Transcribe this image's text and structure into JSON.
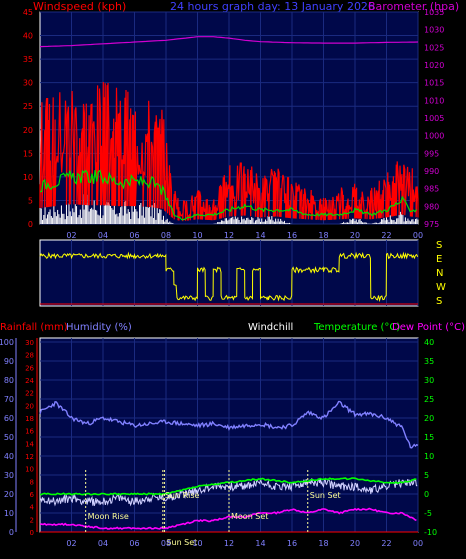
{
  "chart_data": [
    {
      "type": "line",
      "title": "24 hours graph day: 13 January 2026",
      "ylabel_left": "Windspeed (kph)",
      "ylabel_right": "Barometer (hpa)",
      "ylim_left": [
        0,
        45
      ],
      "ylim_right": [
        975,
        1035
      ],
      "left_ticks": [
        "0",
        "5",
        "10",
        "15",
        "20",
        "25",
        "30",
        "35",
        "40",
        "45"
      ],
      "right_ticks": [
        "975",
        "980",
        "985",
        "990",
        "995",
        "1000",
        "1005",
        "1010",
        "1015",
        "1020",
        "1025",
        "1030",
        "1035"
      ],
      "x_ticks": [
        "02",
        "04",
        "06",
        "08",
        "10",
        "12",
        "14",
        "16",
        "18",
        "20",
        "22",
        "00"
      ],
      "series": [
        {
          "name": "Barometer (hpa)",
          "color": "#d000d0",
          "x": [
            0,
            2,
            4,
            6,
            8,
            9,
            10,
            11,
            12,
            13,
            14,
            16,
            18,
            20,
            22,
            24
          ],
          "values": [
            1025.2,
            1025.5,
            1026,
            1026.5,
            1027,
            1027.5,
            1028,
            1028,
            1027.6,
            1027,
            1026.6,
            1026.3,
            1026.2,
            1026.2,
            1026.4,
            1026.5
          ]
        },
        {
          "name": "Wind gust (kph)",
          "color": "#ff0000",
          "x": [
            0,
            1,
            2,
            3,
            4,
            5,
            6,
            7,
            7.8,
            8.5,
            9,
            10,
            11,
            12,
            13,
            14,
            15,
            16,
            17,
            18,
            19,
            20,
            21,
            22,
            23,
            23.5,
            24
          ],
          "values": [
            17,
            19,
            21,
            20,
            20,
            19,
            19,
            18,
            16,
            5,
            3,
            5,
            4,
            8,
            9,
            7,
            8,
            6,
            5,
            4,
            5,
            6,
            5,
            7,
            10,
            8,
            7
          ]
        },
        {
          "name": "Wind average (kph)",
          "color": "#00dd00",
          "x": [
            0,
            1,
            2,
            3,
            4,
            5,
            6,
            7,
            7.8,
            8.5,
            9,
            10,
            11,
            12,
            13,
            14,
            15,
            16,
            17,
            18,
            19,
            20,
            21,
            22,
            23,
            23.5,
            24
          ],
          "values": [
            8,
            9,
            10,
            10,
            10,
            9,
            9,
            9,
            7,
            2,
            1,
            2,
            2,
            3,
            4,
            3,
            3,
            3,
            2,
            2,
            2,
            3,
            2,
            3,
            5,
            3,
            3
          ]
        },
        {
          "name": "Wind lull (kph)",
          "color": "#ffffff",
          "x": [
            0,
            1,
            2,
            3,
            4,
            5,
            6,
            7,
            7.8,
            8.5,
            9,
            10,
            11,
            12,
            13,
            14,
            15,
            16,
            17,
            18,
            19,
            20,
            21,
            22,
            23,
            23.5,
            24
          ],
          "values": [
            2,
            3,
            3,
            4,
            3,
            3,
            3,
            3,
            2,
            0,
            0,
            0,
            0,
            1,
            1,
            1,
            1,
            0,
            0,
            0,
            0,
            1,
            0,
            1,
            2,
            1,
            1
          ]
        }
      ]
    },
    {
      "type": "line",
      "title": "",
      "right_labels": [
        "S",
        "E",
        "N",
        "W",
        "S"
      ],
      "direction_scale": [
        "S",
        "E",
        "N",
        "W",
        "S"
      ],
      "series": [
        {
          "name": "Wind direction",
          "color": "#ffff00",
          "x": [
            0,
            2,
            4,
            6,
            7.5,
            8,
            8.5,
            8.7,
            9.5,
            10,
            10.2,
            10.5,
            11,
            11.5,
            12,
            12.5,
            13,
            13.5,
            14,
            14.5,
            15,
            16,
            17,
            18,
            19,
            20,
            21,
            22,
            23,
            24
          ],
          "values": [
            "W",
            "W",
            "W",
            "W",
            "W",
            "N",
            "E",
            "S",
            "S",
            "N",
            "N",
            "S",
            "N",
            "S",
            "S",
            "N",
            "S",
            "N",
            "S",
            "S",
            "S",
            "N",
            "N",
            "N",
            "W",
            "W",
            "S",
            "W",
            "W",
            "W"
          ]
        }
      ]
    },
    {
      "type": "line",
      "title": "",
      "legend": [
        "Rainfall (mm)",
        "Humidity (%)",
        "Windchill",
        "Temperature (°C)",
        "Dew Point (°C)"
      ],
      "humidity_ticks": [
        "0",
        "10",
        "20",
        "30",
        "40",
        "50",
        "60",
        "70",
        "80",
        "90",
        "100"
      ],
      "rain_ticks": [
        "0",
        "2",
        "4",
        "6",
        "8",
        "10",
        "12",
        "14",
        "16",
        "18",
        "20",
        "22",
        "24",
        "26",
        "28",
        "30"
      ],
      "temp_ticks": [
        "-10",
        "-5",
        "0",
        "5",
        "10",
        "15",
        "20",
        "25",
        "30",
        "35",
        "40"
      ],
      "x_ticks": [
        "02",
        "04",
        "06",
        "08",
        "10",
        "12",
        "14",
        "16",
        "18",
        "20",
        "22",
        "00"
      ],
      "ylim_humidity": [
        0,
        100
      ],
      "ylim_temp": [
        -10,
        40
      ],
      "annotations": [
        {
          "text": "Moon Rise",
          "x": 2.9
        },
        {
          "text": "Sun Rise",
          "x": 7.8
        },
        {
          "text": "Sun Set",
          "x": 7.9
        },
        {
          "text": "Moon Set",
          "x": 12.0
        },
        {
          "text": "Sun Set",
          "x": 17.0
        }
      ],
      "series": [
        {
          "name": "Humidity (%)",
          "color": "#8080ff",
          "x": [
            0,
            1,
            2,
            3,
            4,
            5,
            6,
            7,
            8,
            9,
            10,
            11,
            12,
            13,
            14,
            15,
            16,
            17,
            18,
            19,
            20,
            21,
            22,
            23,
            23.5,
            24
          ],
          "values": [
            63,
            68,
            60,
            57,
            60,
            58,
            56,
            57,
            58,
            57,
            56,
            57,
            55,
            56,
            57,
            55,
            56,
            63,
            60,
            68,
            62,
            62,
            60,
            55,
            45,
            45
          ]
        },
        {
          "name": "Temperature (°C)",
          "color": "#00ff00",
          "x": [
            0,
            2,
            4,
            6,
            8,
            10,
            12,
            14,
            16,
            18,
            20,
            22,
            23,
            24
          ],
          "values": [
            0,
            0,
            0,
            0,
            0,
            2,
            3,
            4,
            3,
            4,
            4,
            3,
            3,
            4
          ]
        },
        {
          "name": "Windchill",
          "color": "#d0d0ff",
          "x": [
            0,
            1,
            2,
            3,
            4,
            5,
            6,
            7,
            8,
            9,
            10,
            11,
            12,
            13,
            14,
            15,
            16,
            17,
            18,
            19,
            20,
            21,
            22,
            23,
            24
          ],
          "values": [
            -1,
            -2,
            -1,
            -2,
            -2,
            -1,
            -2,
            -1,
            -1,
            0,
            1,
            2,
            2,
            2,
            3,
            2,
            2,
            3,
            3,
            2,
            2,
            1,
            2,
            3,
            3
          ]
        },
        {
          "name": "Dew Point (°C)",
          "color": "#ff00ff",
          "x": [
            0,
            2,
            4,
            6,
            7,
            8,
            9,
            10,
            11,
            12,
            13,
            14,
            15,
            16,
            17,
            18,
            19,
            20,
            21,
            22,
            23,
            24
          ],
          "values": [
            -8,
            -8,
            -9,
            -9,
            -9,
            -9,
            -8,
            -7,
            -7,
            -6,
            -6,
            -5,
            -5,
            -4,
            -5,
            -4,
            -5,
            -4,
            -4,
            -5,
            -5,
            -7
          ]
        },
        {
          "name": "Rainfall (mm)",
          "color": "#ff0000",
          "x": [
            0,
            24
          ],
          "values": [
            0,
            0
          ]
        }
      ]
    }
  ]
}
